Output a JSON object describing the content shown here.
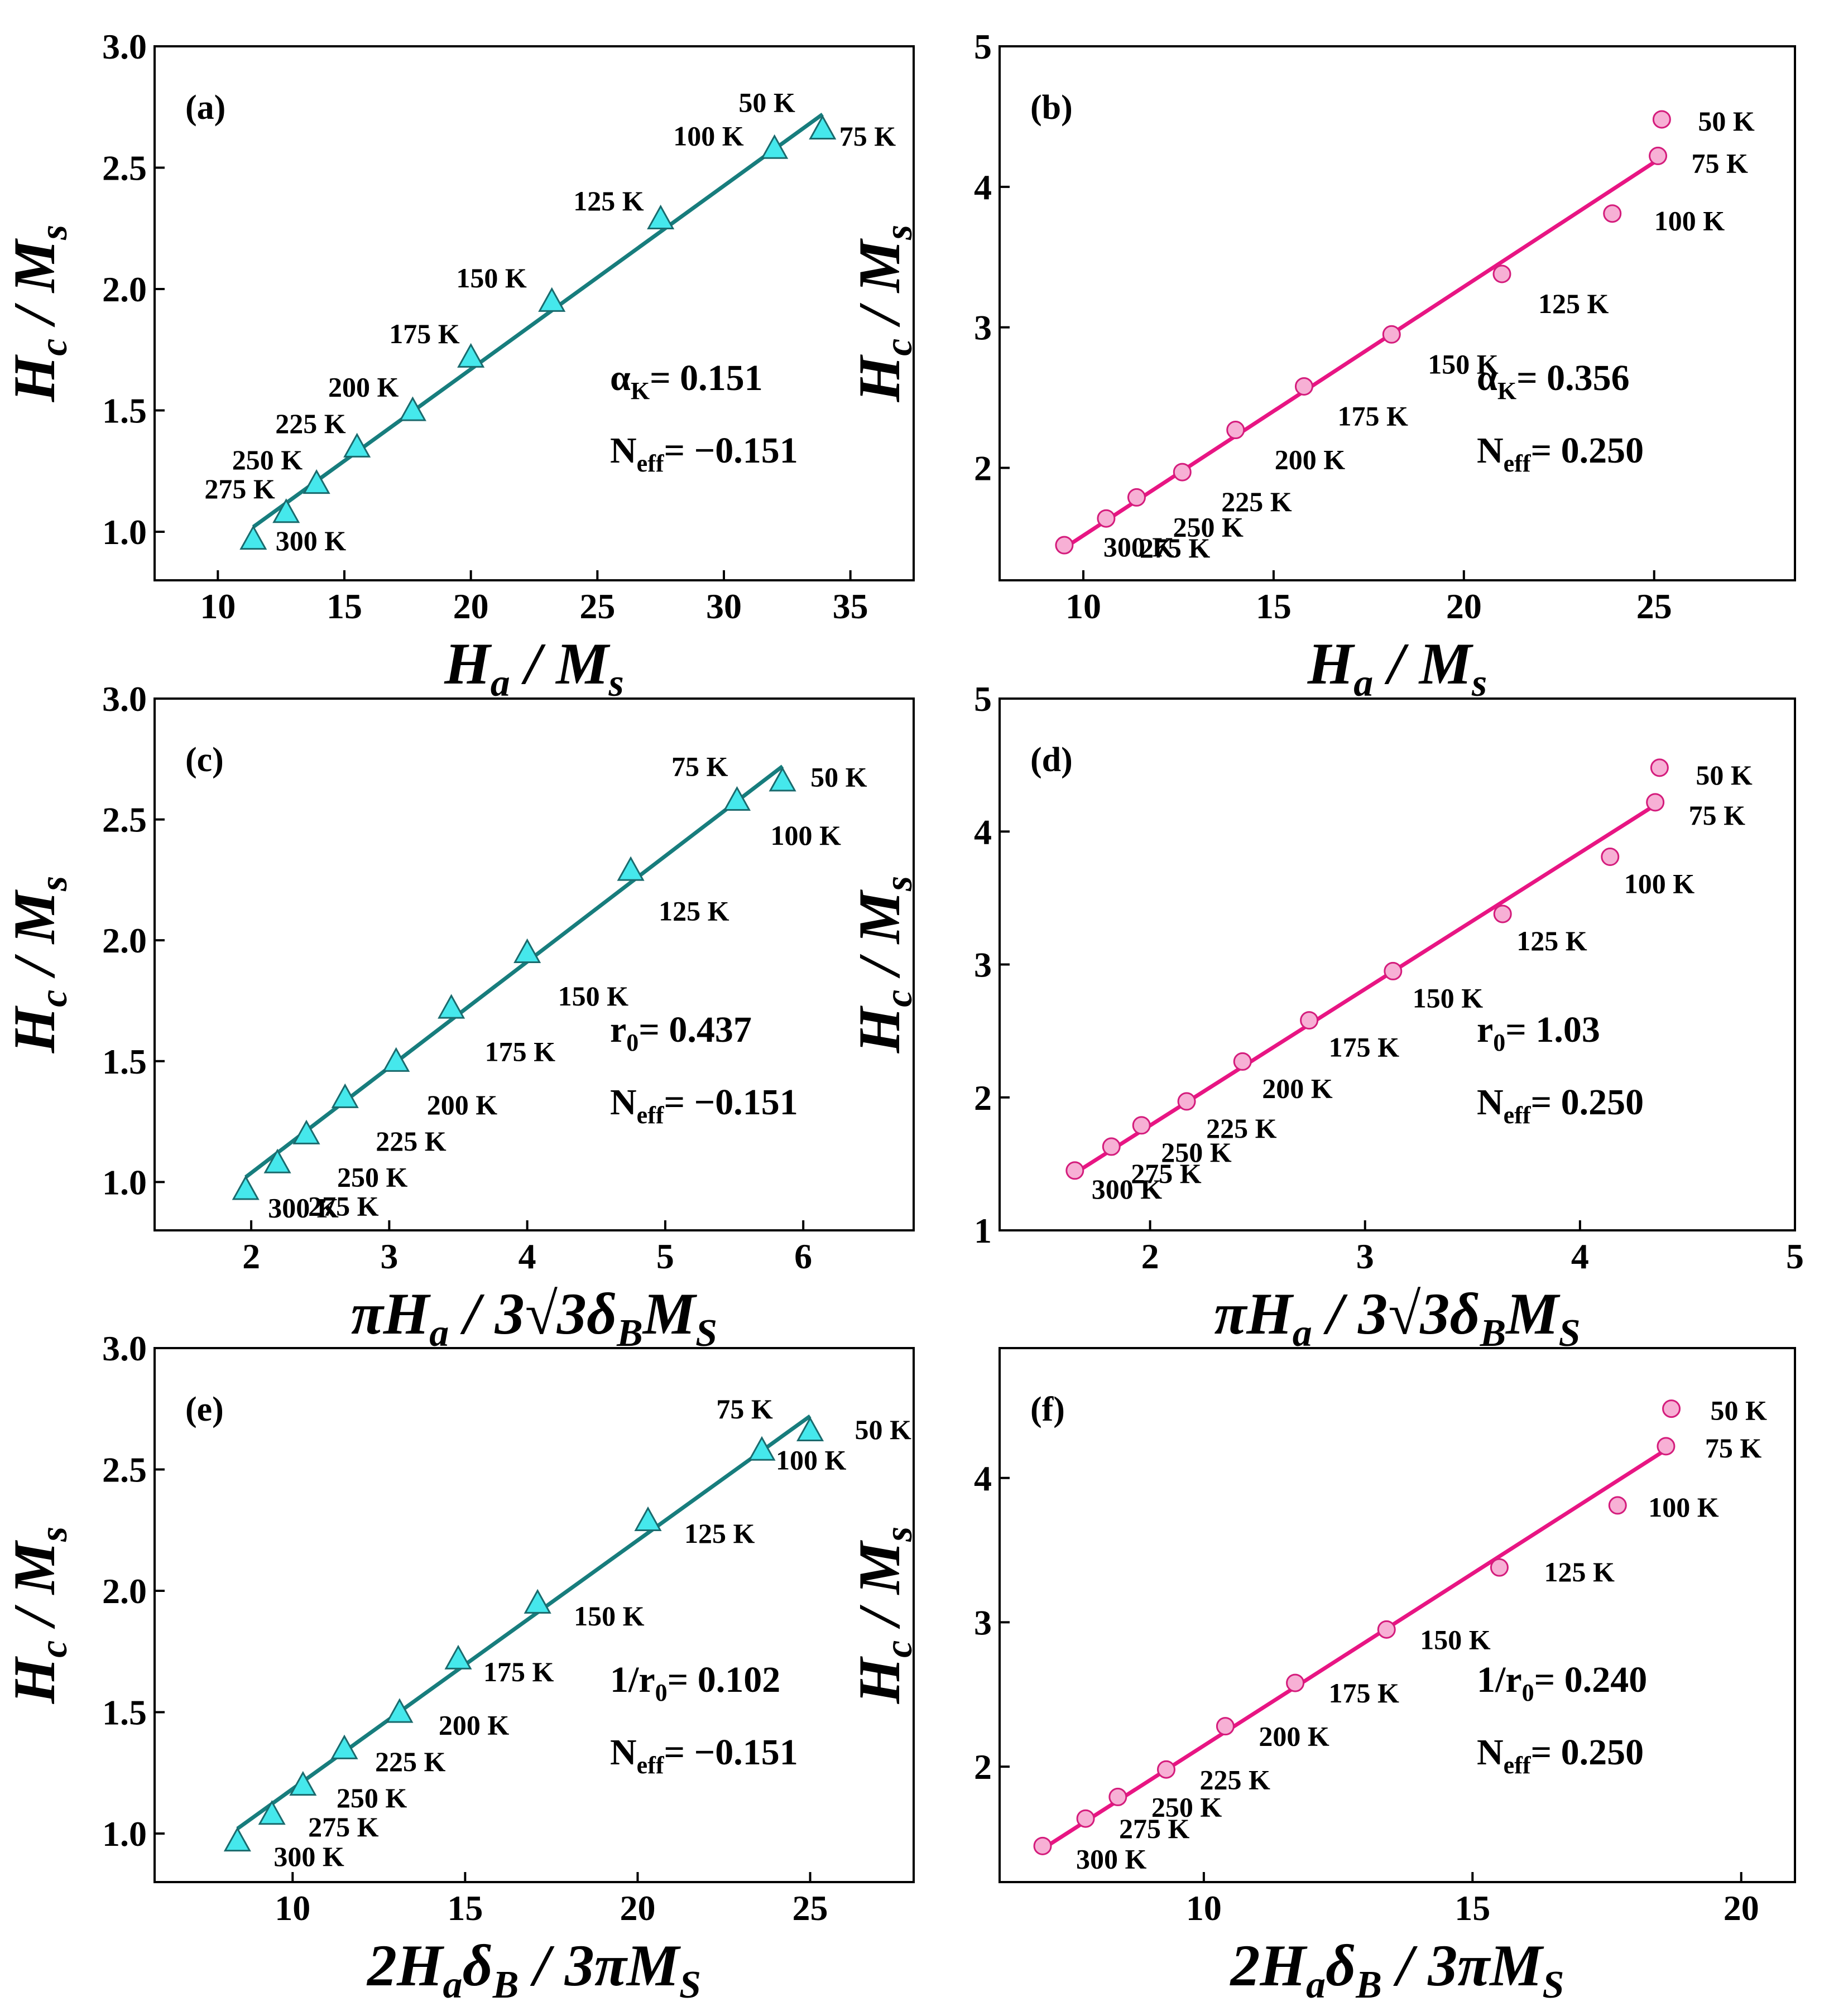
{
  "colors": {
    "teal_line": "#177d7d",
    "teal_marker": "#45e8ec",
    "teal_edge": "#1a6a6d",
    "pink_line": "#e81583",
    "pink_marker": "#f7b0d5",
    "pink_edge": "#d41c7c"
  },
  "chart_data": [
    {
      "id": "a",
      "type": "scatter",
      "panel_label": "(a)",
      "theme": "teal",
      "marker": "triangle",
      "xlabel": "H_a / M_s",
      "ylabel": "H_c / M_s",
      "xlim": [
        7.5,
        37.5
      ],
      "ylim": [
        0.8,
        3.0
      ],
      "xticks": [
        10,
        15,
        20,
        25,
        30,
        35
      ],
      "yticks": [
        1.0,
        1.5,
        2.0,
        2.5,
        3.0
      ],
      "ytick_labels": [
        "1.0",
        "1.5",
        "2.0",
        "2.5",
        "3.0"
      ],
      "points": [
        {
          "x": 33.9,
          "y": 2.66,
          "label": "75 K"
        },
        {
          "x": 32.0,
          "y": 2.58,
          "label": "100 K"
        },
        {
          "x": 27.5,
          "y": 2.29,
          "label": "125 K"
        },
        {
          "x": 23.2,
          "y": 1.95,
          "label": "150 K"
        },
        {
          "x": 20.0,
          "y": 1.72,
          "label": "175 K"
        },
        {
          "x": 17.7,
          "y": 1.5,
          "label": "200 K"
        },
        {
          "x": 15.5,
          "y": 1.35,
          "label": "225 K"
        },
        {
          "x": 13.9,
          "y": 1.2,
          "label": "250 K"
        },
        {
          "x": 12.7,
          "y": 1.08,
          "label": "275 K"
        },
        {
          "x": 11.4,
          "y": 0.97,
          "label": "300 K"
        }
      ],
      "extra_labels": [
        "50 K"
      ],
      "fit_line": {
        "x": [
          11.4,
          33.9
        ],
        "y": [
          1.02,
          2.72
        ]
      },
      "params": {
        "name1": "α",
        "sub1": "K",
        "value1": "= 0.151",
        "name2": "N",
        "sub2": "eff",
        "value2": "= −0.151"
      }
    },
    {
      "id": "b",
      "type": "scatter",
      "panel_label": "(b)",
      "theme": "pink",
      "marker": "circle",
      "xlabel": "H_a / M_s",
      "ylabel": "H_c / M_s",
      "xlim": [
        7.8,
        28.7
      ],
      "ylim": [
        1.2,
        5.0
      ],
      "xticks": [
        10,
        15,
        20,
        25
      ],
      "yticks": [
        2,
        3,
        4,
        5
      ],
      "ytick_labels": [
        "2",
        "3",
        "4",
        "5"
      ],
      "points": [
        {
          "x": 25.2,
          "y": 4.48,
          "label": "50 K"
        },
        {
          "x": 25.1,
          "y": 4.22,
          "label": "75 K"
        },
        {
          "x": 23.9,
          "y": 3.81,
          "label": "100 K"
        },
        {
          "x": 21.0,
          "y": 3.38,
          "label": "125 K"
        },
        {
          "x": 18.1,
          "y": 2.95,
          "label": "150 K"
        },
        {
          "x": 15.8,
          "y": 2.58,
          "label": "175 K"
        },
        {
          "x": 14.0,
          "y": 2.27,
          "label": "200 K"
        },
        {
          "x": 12.6,
          "y": 1.97,
          "label": "225 K"
        },
        {
          "x": 11.4,
          "y": 1.79,
          "label": "250 K"
        },
        {
          "x": 10.6,
          "y": 1.64,
          "label": "275 K"
        },
        {
          "x": 9.5,
          "y": 1.45,
          "label": "300 K"
        }
      ],
      "extra_labels": [],
      "fit_line": {
        "x": [
          9.5,
          25.2
        ],
        "y": [
          1.43,
          4.21
        ]
      },
      "params": {
        "name1": "α",
        "sub1": "K",
        "value1": "= 0.356",
        "name2": "N",
        "sub2": "eff",
        "value2": "= 0.250"
      }
    },
    {
      "id": "c",
      "type": "scatter",
      "panel_label": "(c)",
      "theme": "teal",
      "marker": "triangle",
      "xlabel": "πH_a / 3√3 δ_B M_S",
      "ylabel": "H_c / M_s",
      "xlim": [
        1.3,
        6.8
      ],
      "ylim": [
        0.8,
        3.0
      ],
      "xticks": [
        2,
        3,
        4,
        5,
        6
      ],
      "yticks": [
        1.0,
        1.5,
        2.0,
        2.5,
        3.0
      ],
      "ytick_labels": [
        "1.0",
        "1.5",
        "2.0",
        "2.5",
        "3.0"
      ],
      "points": [
        {
          "x": 5.85,
          "y": 2.66,
          "label": "50 K"
        },
        {
          "x": 5.52,
          "y": 2.58,
          "label": "100 K"
        },
        {
          "x": 4.75,
          "y": 2.29,
          "label": "125 K"
        },
        {
          "x": 4.0,
          "y": 1.95,
          "label": "150 K"
        },
        {
          "x": 3.45,
          "y": 1.72,
          "label": "175 K"
        },
        {
          "x": 3.05,
          "y": 1.5,
          "label": "200 K"
        },
        {
          "x": 2.68,
          "y": 1.35,
          "label": "225 K"
        },
        {
          "x": 2.4,
          "y": 1.2,
          "label": "250 K"
        },
        {
          "x": 2.19,
          "y": 1.08,
          "label": "275 K"
        },
        {
          "x": 1.96,
          "y": 0.97,
          "label": "300 K"
        }
      ],
      "extra_labels": [
        "75 K"
      ],
      "fit_line": {
        "x": [
          1.96,
          5.85
        ],
        "y": [
          1.02,
          2.72
        ]
      },
      "params": {
        "name1": "r",
        "sub1": "0",
        "value1": "= 0.437",
        "name2": "N",
        "sub2": "eff",
        "value2": "= −0.151"
      }
    },
    {
      "id": "d",
      "type": "scatter",
      "panel_label": "(d)",
      "theme": "pink",
      "marker": "circle",
      "xlabel": "πH_a / 3√3 δ_B M_S",
      "ylabel": "H_c / M_s",
      "xlim": [
        1.3,
        5.0
      ],
      "ylim": [
        1.0,
        5.0
      ],
      "xticks": [
        2,
        3,
        4,
        5
      ],
      "yticks": [
        1,
        2,
        3,
        4,
        5
      ],
      "ytick_labels": [
        "1",
        "2",
        "3",
        "4",
        "5"
      ],
      "points": [
        {
          "x": 4.37,
          "y": 4.48,
          "label": "50 K"
        },
        {
          "x": 4.35,
          "y": 4.22,
          "label": "75 K"
        },
        {
          "x": 4.14,
          "y": 3.81,
          "label": "100 K"
        },
        {
          "x": 3.64,
          "y": 3.38,
          "label": "125 K"
        },
        {
          "x": 3.13,
          "y": 2.95,
          "label": "150 K"
        },
        {
          "x": 2.74,
          "y": 2.58,
          "label": "175 K"
        },
        {
          "x": 2.43,
          "y": 2.27,
          "label": "200 K"
        },
        {
          "x": 2.17,
          "y": 1.97,
          "label": "225 K"
        },
        {
          "x": 1.96,
          "y": 1.79,
          "label": "250 K"
        },
        {
          "x": 1.82,
          "y": 1.63,
          "label": "275 K"
        },
        {
          "x": 1.65,
          "y": 1.45,
          "label": "300 K"
        }
      ],
      "extra_labels": [],
      "fit_line": {
        "x": [
          1.65,
          4.37
        ],
        "y": [
          1.43,
          4.22
        ]
      },
      "params": {
        "name1": "r",
        "sub1": "0",
        "value1": "= 1.03",
        "name2": "N",
        "sub2": "eff",
        "value2": "= 0.250"
      }
    },
    {
      "id": "e",
      "type": "scatter",
      "panel_label": "(e)",
      "theme": "teal",
      "marker": "triangle",
      "xlabel": "2H_a δ_B / 3πM_S",
      "ylabel": "H_c / M_s",
      "xlim": [
        6.0,
        28.0
      ],
      "ylim": [
        0.8,
        3.0
      ],
      "xticks": [
        10,
        15,
        20,
        25
      ],
      "yticks": [
        1.0,
        1.5,
        2.0,
        2.5,
        3.0
      ],
      "ytick_labels": [
        "1.0",
        "1.5",
        "2.0",
        "2.5",
        "3.0"
      ],
      "points": [
        {
          "x": 25.0,
          "y": 2.66,
          "label": "50 K"
        },
        {
          "x": 23.6,
          "y": 2.58,
          "label": "100 K"
        },
        {
          "x": 20.3,
          "y": 2.29,
          "label": "125 K"
        },
        {
          "x": 17.1,
          "y": 1.95,
          "label": "150 K"
        },
        {
          "x": 14.8,
          "y": 1.72,
          "label": "175 K"
        },
        {
          "x": 13.1,
          "y": 1.5,
          "label": "200 K"
        },
        {
          "x": 11.5,
          "y": 1.35,
          "label": "225 K"
        },
        {
          "x": 10.3,
          "y": 1.2,
          "label": "250 K"
        },
        {
          "x": 9.4,
          "y": 1.08,
          "label": "275 K"
        },
        {
          "x": 8.4,
          "y": 0.97,
          "label": "300 K"
        }
      ],
      "extra_labels": [
        "75 K"
      ],
      "fit_line": {
        "x": [
          8.4,
          25.0
        ],
        "y": [
          1.02,
          2.72
        ]
      },
      "params": {
        "name1": "1/r",
        "sub1": "0",
        "value1": "= 0.102",
        "name2": "N",
        "sub2": "eff",
        "value2": "= −0.151"
      }
    },
    {
      "id": "f",
      "type": "scatter",
      "panel_label": "(f)",
      "theme": "pink",
      "marker": "circle",
      "xlabel": "2H_a δ_B / 3πM_S",
      "ylabel": "H_c / M_s",
      "xlim": [
        6.2,
        21.0
      ],
      "ylim": [
        1.2,
        4.9
      ],
      "xticks": [
        10,
        15,
        20
      ],
      "yticks": [
        2,
        3,
        4
      ],
      "ytick_labels": [
        "2",
        "3",
        "4"
      ],
      "points": [
        {
          "x": 18.7,
          "y": 4.48,
          "label": "50 K"
        },
        {
          "x": 18.6,
          "y": 4.22,
          "label": "75 K"
        },
        {
          "x": 17.7,
          "y": 3.81,
          "label": "100 K"
        },
        {
          "x": 15.5,
          "y": 3.38,
          "label": "125 K"
        },
        {
          "x": 13.4,
          "y": 2.95,
          "label": "150 K"
        },
        {
          "x": 11.7,
          "y": 2.58,
          "label": "175 K"
        },
        {
          "x": 10.4,
          "y": 2.28,
          "label": "200 K"
        },
        {
          "x": 9.3,
          "y": 1.98,
          "label": "225 K"
        },
        {
          "x": 8.4,
          "y": 1.79,
          "label": "250 K"
        },
        {
          "x": 7.8,
          "y": 1.64,
          "label": "275 K"
        },
        {
          "x": 7.0,
          "y": 1.45,
          "label": "300 K"
        }
      ],
      "extra_labels": [],
      "fit_line": {
        "x": [
          7.0,
          18.7
        ],
        "y": [
          1.43,
          4.22
        ]
      },
      "params": {
        "name1": "1/r",
        "sub1": "0",
        "value1": "= 0.240",
        "name2": "N",
        "sub2": "eff",
        "value2": "= 0.250"
      }
    }
  ]
}
